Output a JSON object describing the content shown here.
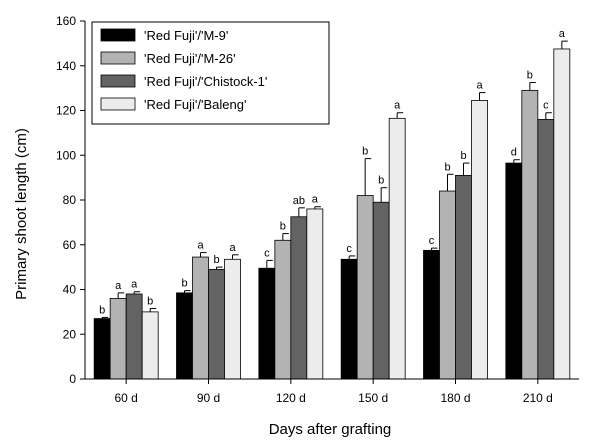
{
  "chart_data": {
    "type": "bar",
    "title": "",
    "xlabel": "Days after grafting",
    "ylabel": "Primary shoot length (cm)",
    "ylim": [
      0,
      160
    ],
    "yticks": [
      0,
      20,
      40,
      60,
      80,
      100,
      120,
      140,
      160
    ],
    "grid": false,
    "legend_position": "top-left",
    "categories": [
      "60 d",
      "90 d",
      "120 d",
      "150 d",
      "180 d",
      "210 d"
    ],
    "series": [
      {
        "name": "'Red Fuji'/'M-9'",
        "color": "#000000",
        "values": [
          27,
          38.5,
          49.5,
          53.5,
          57.5,
          96.5
        ],
        "errors": [
          0.5,
          1,
          3.5,
          1.5,
          1,
          1.5
        ],
        "labels": [
          "b",
          "b",
          "c",
          "c",
          "c",
          "d"
        ]
      },
      {
        "name": "'Red Fuji'/'M-26'",
        "color": "#b3b3b3",
        "values": [
          36,
          54.5,
          62,
          82,
          84,
          129
        ],
        "errors": [
          2.5,
          2,
          3,
          16.5,
          7.5,
          3.5
        ],
        "labels": [
          "a",
          "a",
          "b",
          "b",
          "b",
          "b"
        ]
      },
      {
        "name": "'Red Fuji'/'Chistock-1'",
        "color": "#636363",
        "values": [
          38,
          49,
          72.5,
          79,
          91,
          116
        ],
        "errors": [
          1,
          1,
          4,
          6.5,
          5.5,
          3
        ],
        "labels": [
          "a",
          "b",
          "ab",
          "b",
          "b",
          "c"
        ]
      },
      {
        "name": "'Red Fuji'/'Baleng'",
        "color": "#ececec",
        "values": [
          30,
          53.5,
          76,
          116.5,
          124.5,
          147.5
        ],
        "errors": [
          1.5,
          2,
          1,
          2.5,
          3.5,
          3.5
        ],
        "labels": [
          "b",
          "a",
          "a",
          "a",
          "a",
          "a"
        ]
      }
    ]
  }
}
